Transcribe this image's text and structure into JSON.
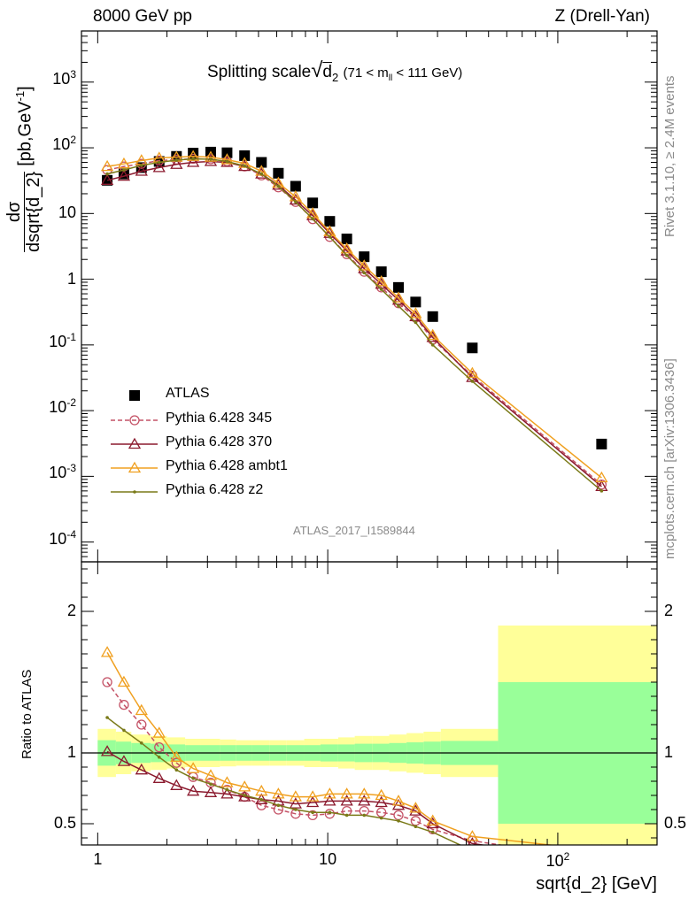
{
  "header": {
    "left": "8000 GeV pp",
    "right": "Z (Drell-Yan)"
  },
  "title": {
    "main": "Splitting scale",
    "sqrt_symbol": "√",
    "var": "d",
    "var_sub": "2",
    "range_pre": "(71 < m",
    "range_sub": "ll",
    "range_post": " < 111 GeV)"
  },
  "side_labels": {
    "rivet": "Rivet 3.1.10, ≥ 2.4M events",
    "mcplots": "mcplots.cern.ch [arXiv:1306.3436]"
  },
  "analysis_id": "ATLAS_2017_I1589844",
  "colors": {
    "atlas": "#000000",
    "p345": "#c45266",
    "p370": "#8b1a2e",
    "ambt1": "#f0a020",
    "z2": "#7a7a18",
    "band_inner": "#99ff99",
    "band_outer": "#ffff99"
  },
  "chart_data": [
    {
      "type": "scatter",
      "panel": "main",
      "xlabel": "sqrt{d_2} [GeV]",
      "ylabel": {
        "num": "dσ",
        "den": "dsqrt{d_2}",
        "unit_pre": "[pb,GeV",
        "unit_sup": "-1",
        "unit_post": "]"
      },
      "x_scale": "log",
      "y_scale": "log",
      "xlim": [
        0.85,
        270
      ],
      "ylim": [
        5e-05,
        6000
      ],
      "x_ticks": [
        {
          "v": 1,
          "label": "1"
        },
        {
          "v": 10,
          "label": "10"
        },
        {
          "v": 100,
          "label": "10",
          "sup": "2"
        }
      ],
      "y_ticks": [
        {
          "v": 0.0001,
          "label": "10",
          "sup": "-4"
        },
        {
          "v": 0.001,
          "label": "10",
          "sup": "-3"
        },
        {
          "v": 0.01,
          "label": "10",
          "sup": "-2"
        },
        {
          "v": 0.1,
          "label": "10",
          "sup": "-1"
        },
        {
          "v": 1,
          "label": "1"
        },
        {
          "v": 10,
          "label": "10"
        },
        {
          "v": 100,
          "label": "10",
          "sup": "2"
        },
        {
          "v": 1000,
          "label": "10",
          "sup": "3"
        }
      ],
      "x": [
        1.1,
        1.3,
        1.55,
        1.85,
        2.2,
        2.6,
        3.1,
        3.65,
        4.35,
        5.15,
        6.1,
        7.25,
        8.6,
        10.2,
        12.1,
        14.4,
        17.1,
        20.3,
        24.1,
        28.6,
        42.5,
        155
      ],
      "legend": "upper-left",
      "series": [
        {
          "name": "ATLAS",
          "key": "atlas",
          "marker": "square",
          "values": [
            32,
            40,
            50,
            62,
            74,
            83,
            86,
            84,
            76,
            60,
            41,
            26,
            14.5,
            7.6,
            4.1,
            2.2,
            1.3,
            0.75,
            0.45,
            0.27,
            0.09,
            0.0031
          ]
        },
        {
          "name": "Pythia 6.428 345",
          "key": "p345",
          "marker": "circle",
          "dashed": true,
          "values": [
            46,
            52,
            57,
            64,
            66,
            68,
            67,
            62,
            52,
            38,
            25,
            15,
            8.2,
            4.4,
            2.4,
            1.3,
            0.75,
            0.43,
            0.26,
            0.12,
            0.034,
            0.00075
          ]
        },
        {
          "name": "Pythia 6.428 370",
          "key": "p370",
          "marker": "triangle",
          "values": [
            32,
            37,
            44,
            50,
            56,
            60,
            62,
            60,
            52,
            40,
            27,
            16,
            9.3,
            5.0,
            2.7,
            1.45,
            0.84,
            0.48,
            0.27,
            0.13,
            0.032,
            0.0007
          ]
        },
        {
          "name": "Pythia 6.428 ambt1",
          "key": "ambt1",
          "marker": "triangle",
          "values": [
            52,
            57,
            64,
            70,
            72,
            74,
            72,
            66,
            58,
            44,
            29,
            18,
            10,
            5.3,
            2.9,
            1.6,
            0.92,
            0.52,
            0.3,
            0.14,
            0.037,
            0.00095
          ]
        },
        {
          "name": "Pythia 6.428 z2",
          "key": "z2",
          "marker": "dot",
          "values": [
            40,
            46,
            54,
            60,
            65,
            68,
            67,
            62,
            53,
            40,
            26,
            15,
            8.3,
            4.4,
            2.3,
            1.25,
            0.7,
            0.39,
            0.22,
            0.1,
            0.028,
            0.0006
          ]
        }
      ]
    },
    {
      "type": "line",
      "panel": "ratio",
      "xlabel": "sqrt{d_2} [GeV]",
      "ylabel": "Ratio to ATLAS",
      "x_scale": "log",
      "xlim": [
        0.85,
        270
      ],
      "ylim": [
        0.35,
        2.35
      ],
      "y_ticks": [
        {
          "v": 0.5,
          "label": "0.5"
        },
        {
          "v": 1,
          "label": "1"
        },
        {
          "v": 2,
          "label": "2"
        }
      ],
      "reference_line": 1,
      "x": [
        1.1,
        1.3,
        1.55,
        1.85,
        2.2,
        2.6,
        3.1,
        3.65,
        4.35,
        5.15,
        6.1,
        7.25,
        8.6,
        10.2,
        12.1,
        14.4,
        17.1,
        20.3,
        24.1,
        28.6,
        42.5,
        155
      ],
      "bands": {
        "edges": [
          1.0,
          1.2,
          1.4,
          1.7,
          2.0,
          2.4,
          2.8,
          3.4,
          4.0,
          4.7,
          5.6,
          6.6,
          7.9,
          9.3,
          11.1,
          13.1,
          15.6,
          18.5,
          22.0,
          26.1,
          31.0,
          55.0,
          270.0
        ],
        "inner_hw": [
          0.09,
          0.08,
          0.07,
          0.065,
          0.06,
          0.055,
          0.055,
          0.055,
          0.055,
          0.055,
          0.055,
          0.055,
          0.055,
          0.06,
          0.06,
          0.065,
          0.065,
          0.07,
          0.075,
          0.08,
          0.085,
          0.5
        ],
        "outer_hw": [
          0.17,
          0.15,
          0.13,
          0.12,
          0.11,
          0.1,
          0.1,
          0.095,
          0.09,
          0.09,
          0.09,
          0.09,
          0.1,
          0.1,
          0.11,
          0.12,
          0.12,
          0.13,
          0.14,
          0.15,
          0.17,
          0.9
        ]
      },
      "series": [
        {
          "name": "Pythia 6.428 345",
          "key": "p345",
          "marker": "circle",
          "dashed": true,
          "values": [
            1.5,
            1.34,
            1.2,
            1.04,
            0.93,
            0.83,
            0.79,
            0.74,
            0.69,
            0.63,
            0.6,
            0.57,
            0.56,
            0.57,
            0.59,
            0.59,
            0.58,
            0.56,
            0.52,
            0.46,
            0.38,
            0.24
          ]
        },
        {
          "name": "Pythia 6.428 370",
          "key": "p370",
          "marker": "triangle",
          "values": [
            1.01,
            0.94,
            0.88,
            0.82,
            0.77,
            0.73,
            0.72,
            0.71,
            0.69,
            0.67,
            0.66,
            0.64,
            0.65,
            0.66,
            0.66,
            0.66,
            0.65,
            0.63,
            0.59,
            0.5,
            0.36,
            0.23
          ]
        },
        {
          "name": "Pythia 6.428 ambt1",
          "key": "ambt1",
          "marker": "triangle",
          "values": [
            1.71,
            1.5,
            1.3,
            1.14,
            0.97,
            0.89,
            0.84,
            0.79,
            0.76,
            0.73,
            0.71,
            0.69,
            0.69,
            0.71,
            0.71,
            0.71,
            0.7,
            0.66,
            0.61,
            0.52,
            0.41,
            0.31
          ]
        },
        {
          "name": "Pythia 6.428 z2",
          "key": "z2",
          "marker": "dot",
          "values": [
            1.25,
            1.16,
            1.07,
            0.97,
            0.88,
            0.82,
            0.78,
            0.74,
            0.7,
            0.67,
            0.63,
            0.6,
            0.58,
            0.58,
            0.56,
            0.56,
            0.54,
            0.52,
            0.48,
            0.44,
            0.31,
            0.2
          ]
        }
      ]
    }
  ]
}
